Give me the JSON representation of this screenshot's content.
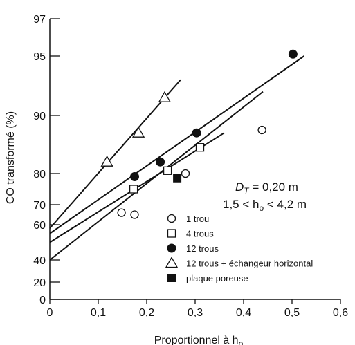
{
  "chart_data": {
    "type": "scatter",
    "title": "",
    "xlabel": "Proportionnel à h",
    "xlabel_sub": "o",
    "ylabel": "CO transformé (%)",
    "xlim": [
      0,
      0.6
    ],
    "y_scale": "probability",
    "ylim": [
      0,
      97
    ],
    "x_ticks": [
      0,
      0.1,
      0.2,
      0.3,
      0.4,
      0.5,
      0.6
    ],
    "x_tick_labels": [
      "0",
      "0,1",
      "0,2",
      "0,3",
      "0,4",
      "0,5",
      "0,6"
    ],
    "y_ticks": [
      0,
      20,
      40,
      60,
      70,
      80,
      90,
      95,
      97
    ],
    "y_tick_labels": [
      "0",
      "20",
      "40",
      "60",
      "70",
      "80",
      "90",
      "95",
      "97"
    ],
    "grid": false,
    "legend_position": "bottom-right",
    "annotation": {
      "line1": "D",
      "line1_sub": "T",
      "line1_rest": " = 0,20 m",
      "line2_a": "1,5 < h",
      "line2_sub": "o",
      "line2_b": " < 4,2 m"
    },
    "series": [
      {
        "name": "1 trou",
        "marker": "open-circle",
        "x": [
          0.148,
          0.175,
          0.28,
          0.438
        ],
        "y": [
          66,
          65,
          80,
          87.5
        ],
        "fit_line": {
          "x": [
            0,
            0.44
          ],
          "y": [
            40,
            92
          ]
        }
      },
      {
        "name": "4 trous",
        "marker": "open-square",
        "x": [
          0.173,
          0.243,
          0.31
        ],
        "y": [
          75,
          80.5,
          84.5
        ],
        "fit_line": {
          "x": [
            0,
            0.36
          ],
          "y": [
            50,
            87
          ]
        }
      },
      {
        "name": "12 trous",
        "marker": "filled-circle",
        "x": [
          0.175,
          0.228,
          0.303,
          0.502
        ],
        "y": [
          79,
          82,
          87,
          95.1
        ],
        "fit_line": {
          "x": [
            0,
            0.525
          ],
          "y": [
            55,
            95
          ]
        }
      },
      {
        "name": "12 trous + échangeur horizontal",
        "marker": "open-triangle",
        "x": [
          0.118,
          0.183,
          0.237
        ],
        "y": [
          82,
          87,
          91.5
        ],
        "fit_line": {
          "x": [
            0,
            0.27
          ],
          "y": [
            58,
            93
          ]
        }
      },
      {
        "name": "plaque poreuse",
        "marker": "filled-square",
        "x": [
          0.263
        ],
        "y": [
          78.5
        ]
      }
    ]
  }
}
